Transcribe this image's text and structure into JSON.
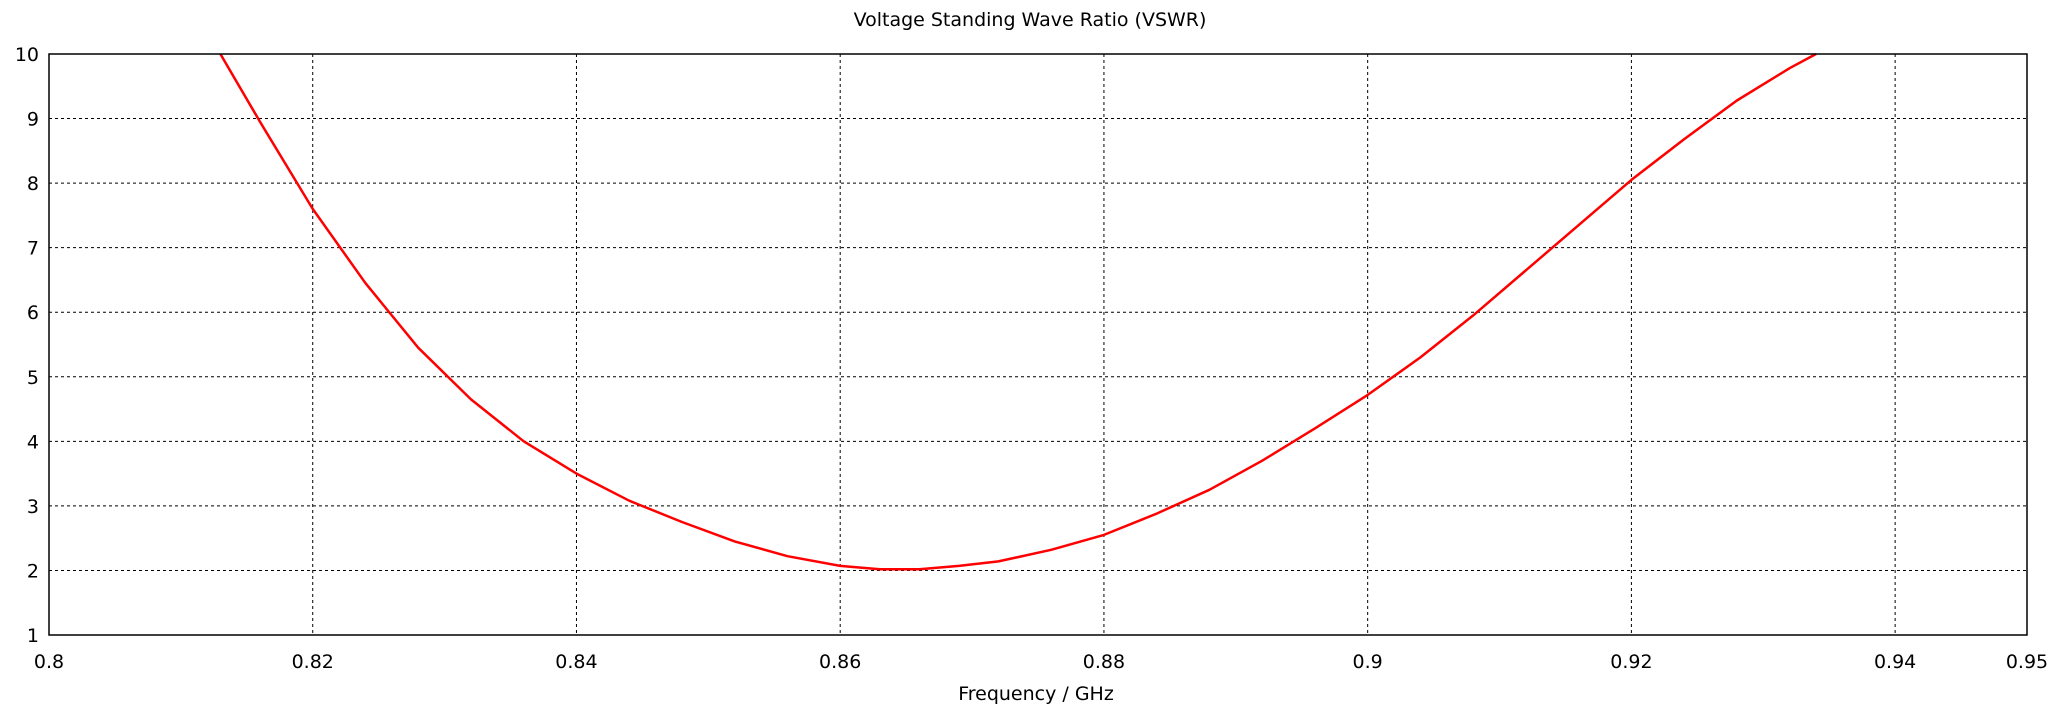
{
  "chart_data": {
    "type": "line",
    "title": "Voltage Standing Wave Ratio (VSWR)",
    "xlabel": "Frequency / GHz",
    "ylabel": "",
    "xlim": [
      0.8,
      0.95
    ],
    "ylim": [
      1,
      10
    ],
    "xticks": [
      "0.8",
      "0.82",
      "0.84",
      "0.86",
      "0.88",
      "0.9",
      "0.92",
      "0.94",
      "0.95"
    ],
    "xtick_values": [
      0.8,
      0.82,
      0.84,
      0.86,
      0.88,
      0.9,
      0.92,
      0.94,
      0.95
    ],
    "yticks": [
      "1",
      "2",
      "3",
      "4",
      "5",
      "6",
      "7",
      "8",
      "9",
      "10"
    ],
    "ytick_values": [
      1,
      2,
      3,
      4,
      5,
      6,
      7,
      8,
      9,
      10
    ],
    "grid": true,
    "series": [
      {
        "color": "#ff0000",
        "x": [
          0.813,
          0.816,
          0.82,
          0.824,
          0.828,
          0.832,
          0.836,
          0.84,
          0.844,
          0.848,
          0.852,
          0.856,
          0.86,
          0.863,
          0.866,
          0.869,
          0.872,
          0.876,
          0.88,
          0.884,
          0.888,
          0.892,
          0.896,
          0.9,
          0.904,
          0.908,
          0.912,
          0.916,
          0.92,
          0.924,
          0.928,
          0.932,
          0.934
        ],
        "y": [
          10.0,
          8.95,
          7.6,
          6.45,
          5.45,
          4.65,
          4.0,
          3.5,
          3.08,
          2.75,
          2.45,
          2.22,
          2.07,
          2.02,
          2.02,
          2.07,
          2.14,
          2.32,
          2.55,
          2.88,
          3.25,
          3.7,
          4.2,
          4.72,
          5.3,
          5.95,
          6.65,
          7.35,
          8.05,
          8.68,
          9.28,
          9.78,
          10.0
        ]
      }
    ]
  }
}
